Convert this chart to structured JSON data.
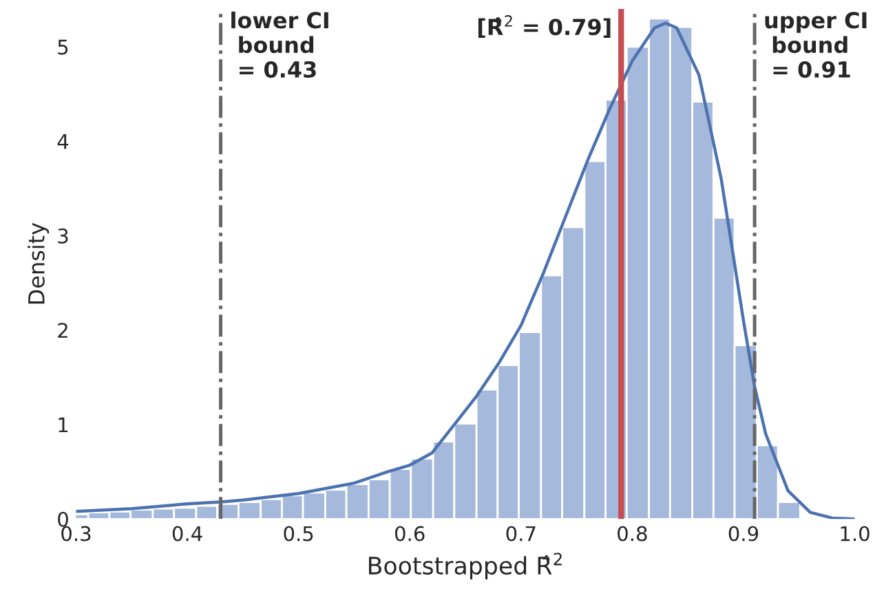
{
  "chart_data": {
    "type": "histogram",
    "xlabel": "Bootstrapped R̂$^{2}$",
    "ylabel": "Density",
    "bins": [
      0.291,
      0.311,
      0.33,
      0.349,
      0.369,
      0.388,
      0.408,
      0.427,
      0.446,
      0.466,
      0.485,
      0.504,
      0.524,
      0.543,
      0.563,
      0.582,
      0.601,
      0.621,
      0.64,
      0.66,
      0.679,
      0.698,
      0.718,
      0.737,
      0.757,
      0.776,
      0.795,
      0.815,
      0.834,
      0.854,
      0.873,
      0.892,
      0.912,
      0.931,
      0.951
    ],
    "values": [
      0.05,
      0.07,
      0.08,
      0.1,
      0.11,
      0.12,
      0.14,
      0.16,
      0.18,
      0.21,
      0.25,
      0.28,
      0.31,
      0.37,
      0.42,
      0.53,
      0.64,
      0.82,
      1.01,
      1.37,
      1.63,
      1.98,
      2.58,
      3.09,
      3.79,
      4.44,
      5.0,
      5.3,
      5.21,
      4.42,
      3.19,
      1.84,
      0.78,
      0.18
    ],
    "color": "#a5b9dc",
    "series": [
      {
        "type": "line",
        "color": "#4c72b0",
        "x": [
          0.3,
          0.35,
          0.4,
          0.43,
          0.45,
          0.5,
          0.55,
          0.58,
          0.6,
          0.62,
          0.64,
          0.66,
          0.68,
          0.7,
          0.72,
          0.74,
          0.76,
          0.78,
          0.8,
          0.82,
          0.83,
          0.84,
          0.86,
          0.88,
          0.9,
          0.91,
          0.92,
          0.94,
          0.96,
          0.98,
          1.0
        ],
        "values": [
          0.08,
          0.11,
          0.16,
          0.18,
          0.2,
          0.27,
          0.38,
          0.5,
          0.57,
          0.7,
          1.0,
          1.3,
          1.65,
          2.05,
          2.6,
          3.2,
          3.8,
          4.35,
          4.85,
          5.2,
          5.25,
          5.2,
          4.7,
          3.6,
          2.1,
          1.4,
          0.9,
          0.3,
          0.07,
          0.01,
          0.0
        ]
      }
    ],
    "ref_lines": [
      {
        "axis": "x",
        "value": 0.43,
        "label": "lower CI\n bound\n = 0.43",
        "color": "#666666",
        "line_style": "dashdot"
      },
      {
        "axis": "x",
        "value": 0.79,
        "label": "[R̂$^{2}$ = 0.79]",
        "color": "#c44e52",
        "line_style": "solid"
      },
      {
        "axis": "x",
        "value": 0.91,
        "label": "upper CI\n bound\n = 0.91",
        "color": "#666666",
        "line_style": "dashdot"
      }
    ],
    "xlim": [
      0.3,
      1.0
    ],
    "ylim": [
      0,
      5.4
    ],
    "xticks": [
      0.3,
      0.4,
      0.5,
      0.6,
      0.7,
      0.8,
      0.9,
      {
        "value": 1.0,
        "label": "1.0"
      }
    ],
    "yticks": [
      0,
      1,
      2,
      3,
      4,
      5
    ],
    "grid": false,
    "legend": false
  }
}
